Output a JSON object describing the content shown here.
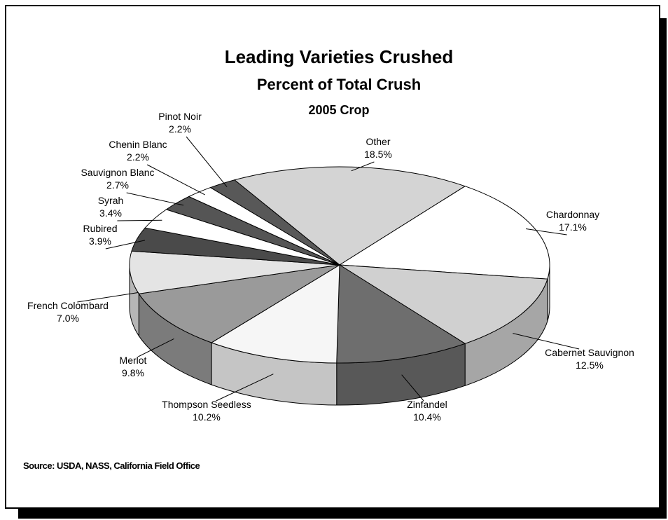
{
  "chart_data": {
    "type": "pie3d",
    "title": "Leading Varieties Crushed",
    "subtitle": "Percent of Total Crush",
    "subtitle_2": "2005 Crop",
    "categories": [
      "Other",
      "Chardonnay",
      "Cabernet Sauvignon",
      "Zinfandel",
      "Thompson Seedless",
      "Merlot",
      "French Colombard",
      "Rubired",
      "Syrah",
      "Sauvignon Blanc",
      "Chenin Blanc",
      "Pinot Noir"
    ],
    "values": [
      18.5,
      17.1,
      12.5,
      10.4,
      10.2,
      9.8,
      7.0,
      3.9,
      3.4,
      2.7,
      2.2,
      2.2
    ],
    "value_labels": [
      "18.5%",
      "17.1%",
      "12.5%",
      "10.4%",
      "10.2%",
      "9.8%",
      "7.0%",
      "3.9%",
      "3.4%",
      "2.7%",
      "2.2%",
      "2.2%"
    ],
    "colors": [
      "#d4d4d4",
      "#ffffff",
      "#d0d0d0",
      "#6e6e6e",
      "#f6f6f6",
      "#9a9a9a",
      "#e4e4e4",
      "#4a4a4a",
      "#ffffff",
      "#555555",
      "#ffffff",
      "#585858"
    ],
    "source": "Source:  USDA, NASS, California Field Office"
  }
}
